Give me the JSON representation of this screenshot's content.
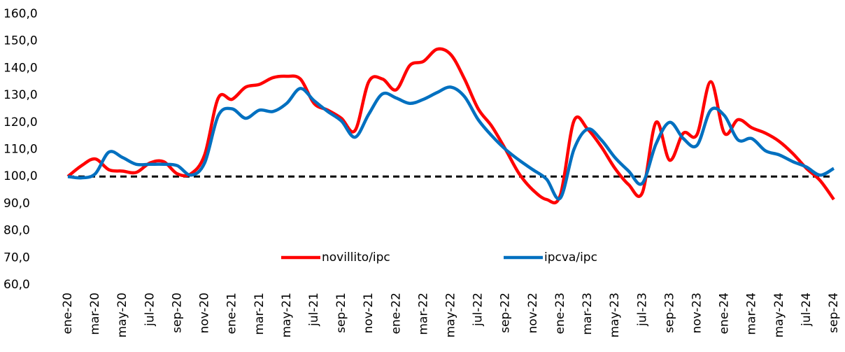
{
  "chart_data": {
    "type": "line",
    "categories": [
      "ene-20",
      null,
      "mar-20",
      null,
      "may-20",
      null,
      "jul-20",
      null,
      "sep-20",
      null,
      "nov-20",
      null,
      "ene-21",
      null,
      "mar-21",
      null,
      "may-21",
      null,
      "jul-21",
      null,
      "sep-21",
      null,
      "nov-21",
      null,
      "ene-22",
      null,
      "mar-22",
      null,
      "may-22",
      null,
      "jul-22",
      null,
      "sep-22",
      null,
      "nov-22",
      null,
      "ene-23",
      null,
      "mar-23",
      null,
      "may-23",
      null,
      "jul-23",
      null,
      "sep-23",
      null,
      "nov-23",
      null,
      "ene-24",
      null,
      "mar-24",
      null,
      "may-24",
      null,
      "jul-24",
      null,
      "sep-24"
    ],
    "series": [
      {
        "name": "novillito/ipc",
        "color": "#ff0000",
        "values": [
          100,
          104,
          106.5,
          102.5,
          102,
          101.5,
          105,
          105.5,
          101,
          101,
          108,
          129,
          128.5,
          133,
          134,
          136.5,
          137,
          136,
          127,
          124.5,
          121.5,
          117,
          135,
          136,
          132,
          141,
          142.5,
          147,
          145,
          136,
          125,
          118.5,
          110,
          101,
          95,
          91.5,
          93,
          120.5,
          117.5,
          111,
          103,
          97,
          94,
          120,
          106,
          116,
          115.5,
          135,
          116,
          121,
          118,
          116,
          113,
          108.5,
          103,
          98.5,
          91.5
        ]
      },
      {
        "name": "ipcva/ipc",
        "color": "#0070c0",
        "values": [
          100,
          99.5,
          101,
          109,
          107,
          104.5,
          104.5,
          104.5,
          104,
          100.5,
          105,
          122.5,
          125,
          121.5,
          124.5,
          124,
          127,
          132.5,
          128,
          124,
          120.5,
          114.5,
          123,
          130.5,
          129,
          127,
          128.5,
          131,
          133,
          129.5,
          121,
          115,
          110,
          106,
          102.5,
          99,
          92,
          110,
          117.5,
          113.5,
          107,
          102,
          97.5,
          112,
          120,
          114,
          111.5,
          124.5,
          122.5,
          113.5,
          114,
          109.5,
          108,
          105.5,
          103.5,
          100.5,
          103
        ]
      }
    ],
    "reference_line": {
      "value": 100,
      "color": "#000000",
      "dashed": true
    },
    "ylim": [
      60,
      160
    ],
    "yticks": [
      {
        "value": 60,
        "label": "60,0"
      },
      {
        "value": 70,
        "label": "70,0"
      },
      {
        "value": 80,
        "label": "80,0"
      },
      {
        "value": 90,
        "label": "90,0"
      },
      {
        "value": 100,
        "label": "100,0"
      },
      {
        "value": 110,
        "label": "110,0"
      },
      {
        "value": 120,
        "label": "120,0"
      },
      {
        "value": 130,
        "label": "130,0"
      },
      {
        "value": 140,
        "label": "140,0"
      },
      {
        "value": 150,
        "label": "150,0"
      },
      {
        "value": 160,
        "label": "160,0"
      }
    ],
    "grid": false,
    "legend": "bottom"
  }
}
